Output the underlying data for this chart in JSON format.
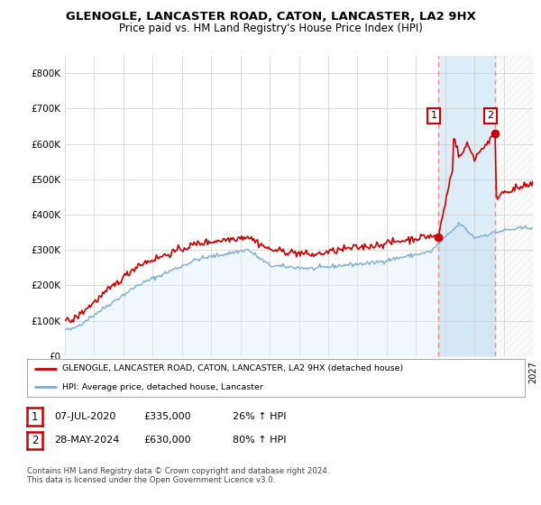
{
  "title": "GLENOGLE, LANCASTER ROAD, CATON, LANCASTER, LA2 9HX",
  "subtitle": "Price paid vs. HM Land Registry's House Price Index (HPI)",
  "ylim": [
    0,
    850000
  ],
  "yticks": [
    0,
    100000,
    200000,
    300000,
    400000,
    500000,
    600000,
    700000,
    800000
  ],
  "ytick_labels": [
    "£0",
    "£100K",
    "£200K",
    "£300K",
    "£400K",
    "£500K",
    "£600K",
    "£700K",
    "£800K"
  ],
  "hpi_color": "#7bafd4",
  "price_color": "#cc0000",
  "marker1_year": 2020.52,
  "marker1_price": 335000,
  "marker2_year": 2024.41,
  "marker2_price": 630000,
  "annotation1": [
    "1",
    "07-JUL-2020",
    "£335,000",
    "26% ↑ HPI"
  ],
  "annotation2": [
    "2",
    "28-MAY-2024",
    "£630,000",
    "80% ↑ HPI"
  ],
  "legend_line1": "GLENOGLE, LANCASTER ROAD, CATON, LANCASTER, LA2 9HX (detached house)",
  "legend_line2": "HPI: Average price, detached house, Lancaster",
  "footer": "Contains HM Land Registry data © Crown copyright and database right 2024.\nThis data is licensed under the Open Government Licence v3.0.",
  "xmin": 1995,
  "xmax": 2027,
  "background_color": "#ffffff",
  "grid_color": "#cccccc",
  "shade_color": "#ddeeff",
  "hatch_color": "#ccddee",
  "dashed_line_color": "#ff8888"
}
